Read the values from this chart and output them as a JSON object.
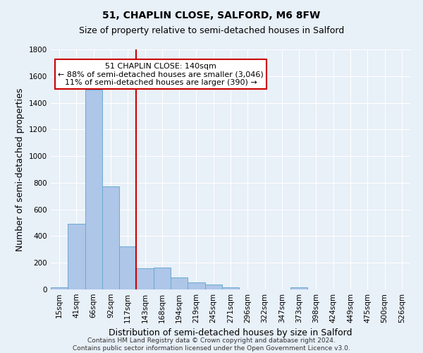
{
  "title": "51, CHAPLIN CLOSE, SALFORD, M6 8FW",
  "subtitle": "Size of property relative to semi-detached houses in Salford",
  "xlabel": "Distribution of semi-detached houses by size in Salford",
  "ylabel": "Number of semi-detached properties",
  "footer_line1": "Contains HM Land Registry data © Crown copyright and database right 2024.",
  "footer_line2": "Contains public sector information licensed under the Open Government Licence v3.0.",
  "bar_labels": [
    "15sqm",
    "41sqm",
    "66sqm",
    "92sqm",
    "117sqm",
    "143sqm",
    "168sqm",
    "194sqm",
    "219sqm",
    "245sqm",
    "271sqm",
    "296sqm",
    "322sqm",
    "347sqm",
    "373sqm",
    "398sqm",
    "424sqm",
    "449sqm",
    "475sqm",
    "500sqm",
    "526sqm"
  ],
  "bar_values": [
    15,
    490,
    1500,
    775,
    325,
    160,
    165,
    90,
    55,
    35,
    15,
    0,
    0,
    0,
    15,
    0,
    0,
    0,
    0,
    0,
    0
  ],
  "bar_color": "#aec6e8",
  "bar_edge_color": "#6aaad4",
  "background_color": "#e8f0f8",
  "grid_color": "#ffffff",
  "property_bar_index": 5,
  "red_line_color": "#cc0000",
  "annotation_line1": "51 CHAPLIN CLOSE: 140sqm",
  "annotation_line2": "← 88% of semi-detached houses are smaller (3,046)",
  "annotation_line3": "11% of semi-detached houses are larger (390) →",
  "annotation_box_color": "#ffffff",
  "annotation_box_edge_color": "#cc0000",
  "ylim": [
    0,
    1800
  ],
  "yticks": [
    0,
    200,
    400,
    600,
    800,
    1000,
    1200,
    1400,
    1600,
    1800
  ],
  "title_fontsize": 10,
  "subtitle_fontsize": 9,
  "axis_label_fontsize": 9,
  "tick_fontsize": 7.5,
  "annotation_fontsize": 8,
  "footer_fontsize": 6.5
}
